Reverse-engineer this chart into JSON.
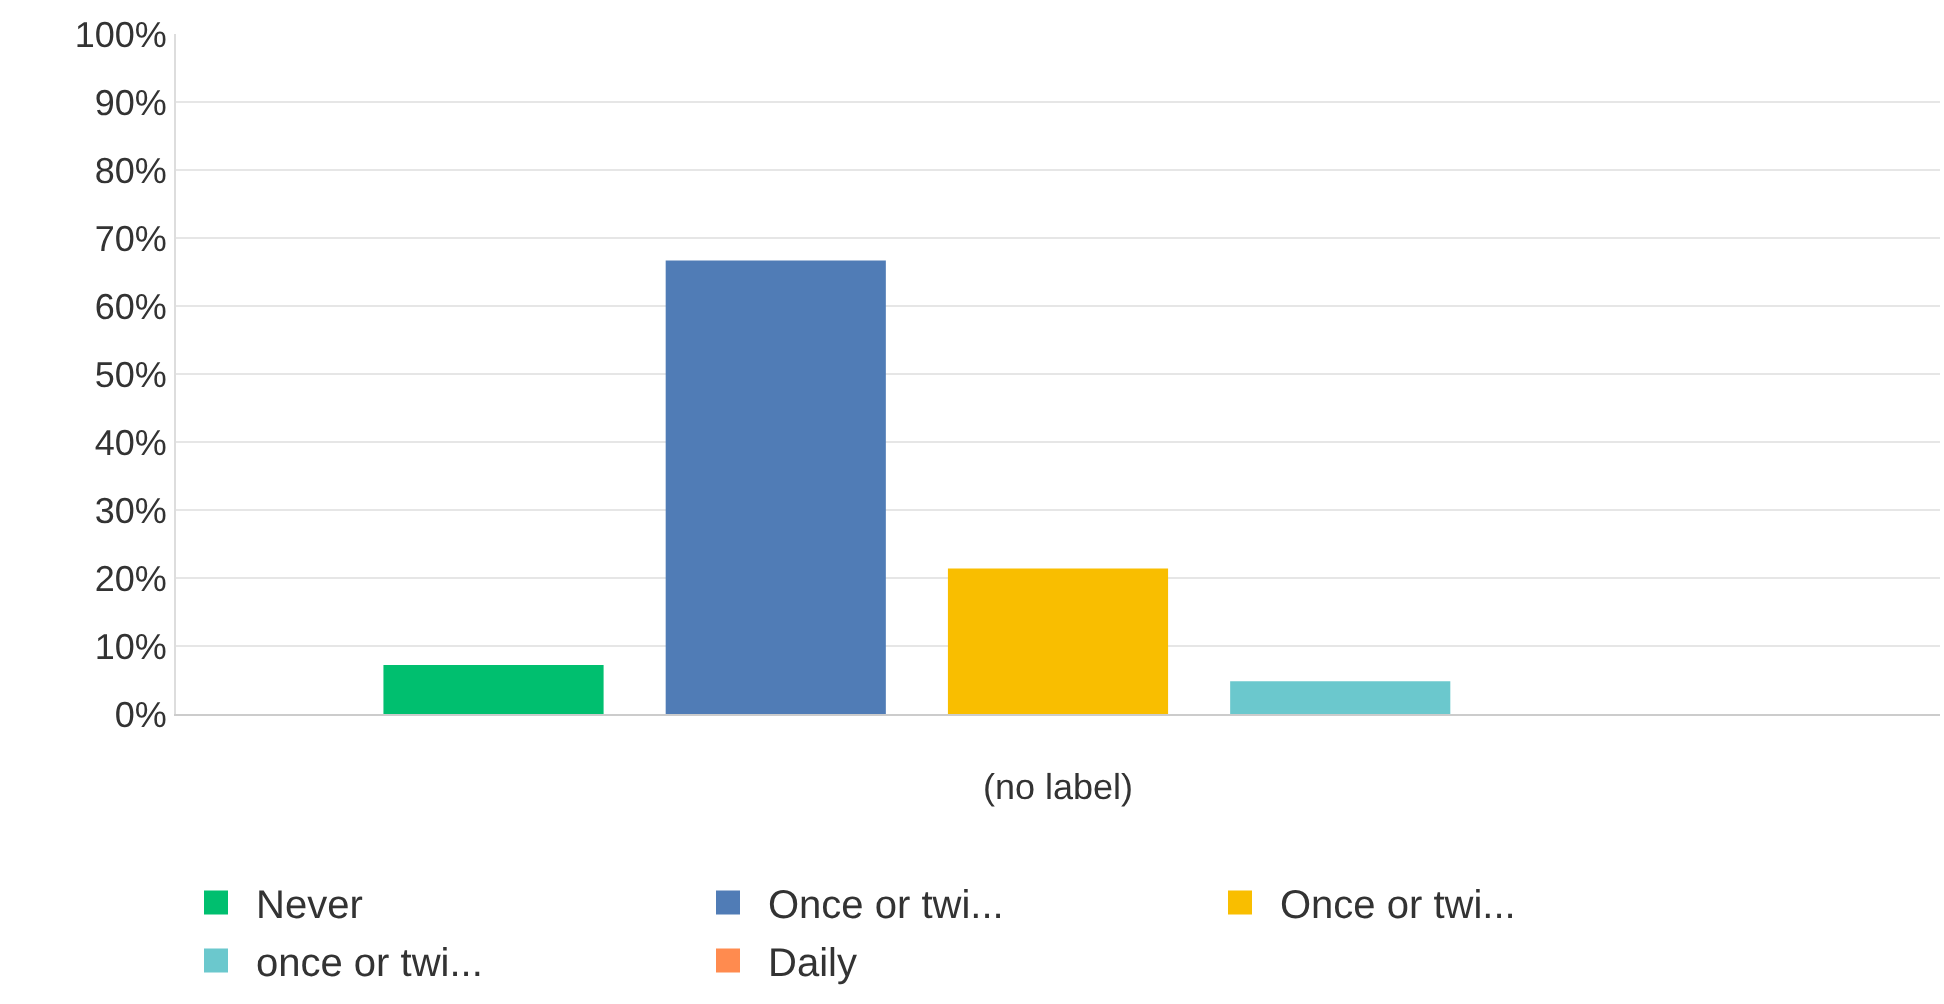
{
  "chart_data": {
    "type": "bar",
    "categories": [
      "(no label)"
    ],
    "series": [
      {
        "name": "Never",
        "color": "#00bf6f",
        "values": [
          7.2
        ]
      },
      {
        "name": "Once or twi...",
        "color": "#507cb6",
        "values": [
          66.7
        ]
      },
      {
        "name": "Once or twi...",
        "color": "#f9be00",
        "values": [
          21.4
        ]
      },
      {
        "name": "once or twi...",
        "color": "#6bc8cd",
        "values": [
          4.8
        ]
      },
      {
        "name": "Daily",
        "color": "#ff8b4f",
        "values": [
          0
        ]
      }
    ],
    "ylim": [
      0,
      100
    ],
    "yticks": [
      {
        "value": 0,
        "label": "0%"
      },
      {
        "value": 10,
        "label": "10%"
      },
      {
        "value": 20,
        "label": "20%"
      },
      {
        "value": 30,
        "label": "30%"
      },
      {
        "value": 40,
        "label": "40%"
      },
      {
        "value": 50,
        "label": "50%"
      },
      {
        "value": 60,
        "label": "60%"
      },
      {
        "value": 70,
        "label": "70%"
      },
      {
        "value": 80,
        "label": "80%"
      },
      {
        "value": 90,
        "label": "90%"
      },
      {
        "value": 100,
        "label": "100%"
      }
    ],
    "grid": "y",
    "legend": "bottom left"
  }
}
